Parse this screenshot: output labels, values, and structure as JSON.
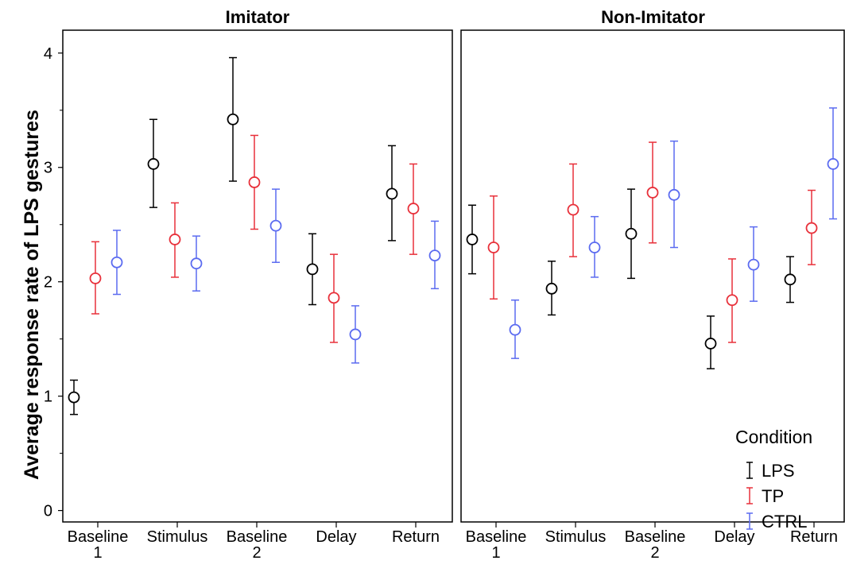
{
  "chart_data": {
    "type": "scatter",
    "ylabel": "Average response rate of LPS gestures",
    "ylim": [
      -0.1,
      4.2
    ],
    "yticks": [
      "0",
      "1",
      "2",
      "3",
      "4"
    ],
    "grid": false,
    "categories": [
      [
        "Baseline",
        "1"
      ],
      [
        "Stimulus"
      ],
      [
        "Baseline",
        "2"
      ],
      [
        "Delay"
      ],
      [
        "Return"
      ]
    ],
    "legend": {
      "title": "Condition",
      "placement": "bottom-right",
      "entries": [
        {
          "name": "LPS",
          "color": "#000000"
        },
        {
          "name": "TP",
          "color": "#e8303a"
        },
        {
          "name": "CTRL",
          "color": "#5b6bf0"
        }
      ]
    },
    "panels": [
      {
        "title": "Imitator",
        "series": [
          {
            "name": "LPS",
            "color": "#000000",
            "mean": [
              0.99,
              3.03,
              3.42,
              2.11,
              2.77
            ],
            "low": [
              0.84,
              2.65,
              2.88,
              1.8,
              2.36
            ],
            "high": [
              1.14,
              3.42,
              3.96,
              2.42,
              3.19
            ]
          },
          {
            "name": "TP",
            "color": "#e8303a",
            "mean": [
              2.03,
              2.37,
              2.87,
              1.86,
              2.64
            ],
            "low": [
              1.72,
              2.04,
              2.46,
              1.47,
              2.24
            ],
            "high": [
              2.35,
              2.69,
              3.28,
              2.24,
              3.03
            ]
          },
          {
            "name": "CTRL",
            "color": "#5b6bf0",
            "mean": [
              2.17,
              2.16,
              2.49,
              1.54,
              2.23
            ],
            "low": [
              1.89,
              1.92,
              2.17,
              1.29,
              1.94
            ],
            "high": [
              2.45,
              2.4,
              2.81,
              1.79,
              2.53
            ]
          }
        ]
      },
      {
        "title": "Non-Imitator",
        "series": [
          {
            "name": "LPS",
            "color": "#000000",
            "mean": [
              2.37,
              1.94,
              2.42,
              1.46,
              2.02
            ],
            "low": [
              2.07,
              1.71,
              2.03,
              1.24,
              1.82
            ],
            "high": [
              2.67,
              2.18,
              2.81,
              1.7,
              2.22
            ]
          },
          {
            "name": "TP",
            "color": "#e8303a",
            "mean": [
              2.3,
              2.63,
              2.78,
              1.84,
              2.47
            ],
            "low": [
              1.85,
              2.22,
              2.34,
              1.47,
              2.15
            ],
            "high": [
              2.75,
              3.03,
              3.22,
              2.2,
              2.8
            ]
          },
          {
            "name": "CTRL",
            "color": "#5b6bf0",
            "mean": [
              1.58,
              2.3,
              2.76,
              2.15,
              3.03
            ],
            "low": [
              1.33,
              2.04,
              2.3,
              1.83,
              2.55
            ],
            "high": [
              1.84,
              2.57,
              3.23,
              2.48,
              3.52
            ]
          }
        ]
      }
    ]
  }
}
